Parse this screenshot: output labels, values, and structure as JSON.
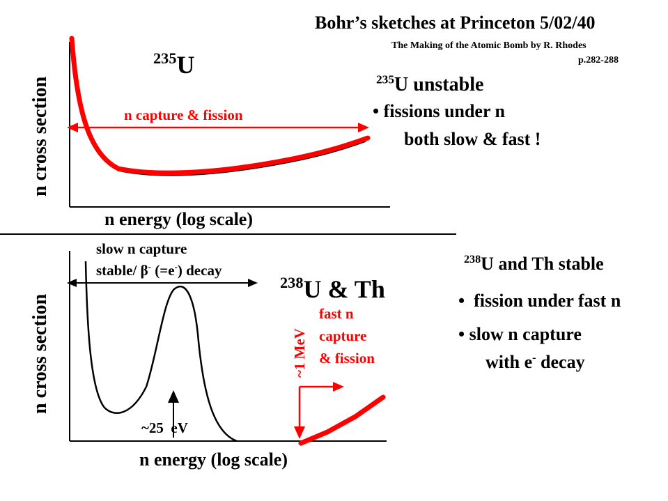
{
  "header": {
    "title": "Bohr’s sketches at Princeton 5/02/40",
    "source": "The Making of the Atomic Bomb by R. Rhodes",
    "pages": "p.282-288"
  },
  "top_plot": {
    "ylabel": "n cross section",
    "xlabel": "n energy (log scale)",
    "isotope_sup": "235",
    "isotope": "U",
    "arrow_label": "n capture & fission"
  },
  "top_notes": {
    "line1_sup": "235",
    "line1": "U unstable",
    "line2": "• fissions under n",
    "line3": "both slow & fast !"
  },
  "bottom_plot": {
    "ylabel": "n cross section",
    "xlabel": "n energy (log scale)",
    "slow_label_1": "slow n capture",
    "slow_label_2_a": "stable/ β",
    "slow_label_2_sup": "-",
    "slow_label_2_b": " (=e",
    "slow_label_2_sup2": "-",
    "slow_label_2_c": ") decay",
    "isotope_sup": "238",
    "isotope": "U & Th",
    "resonance_label": "~25  eV",
    "threshold_label": "~1 MeV",
    "fast_1": "fast n",
    "fast_2": "capture",
    "fast_3": "& fission"
  },
  "bottom_notes": {
    "line1_sup": "238",
    "line1": "U and Th stable",
    "line2": "•  fission under fast n",
    "line3": "• slow n capture",
    "line4_a": "with e",
    "line4_sup": "-",
    "line4_b": " decay"
  },
  "colors": {
    "red": "#ff0000",
    "black": "#000000"
  }
}
